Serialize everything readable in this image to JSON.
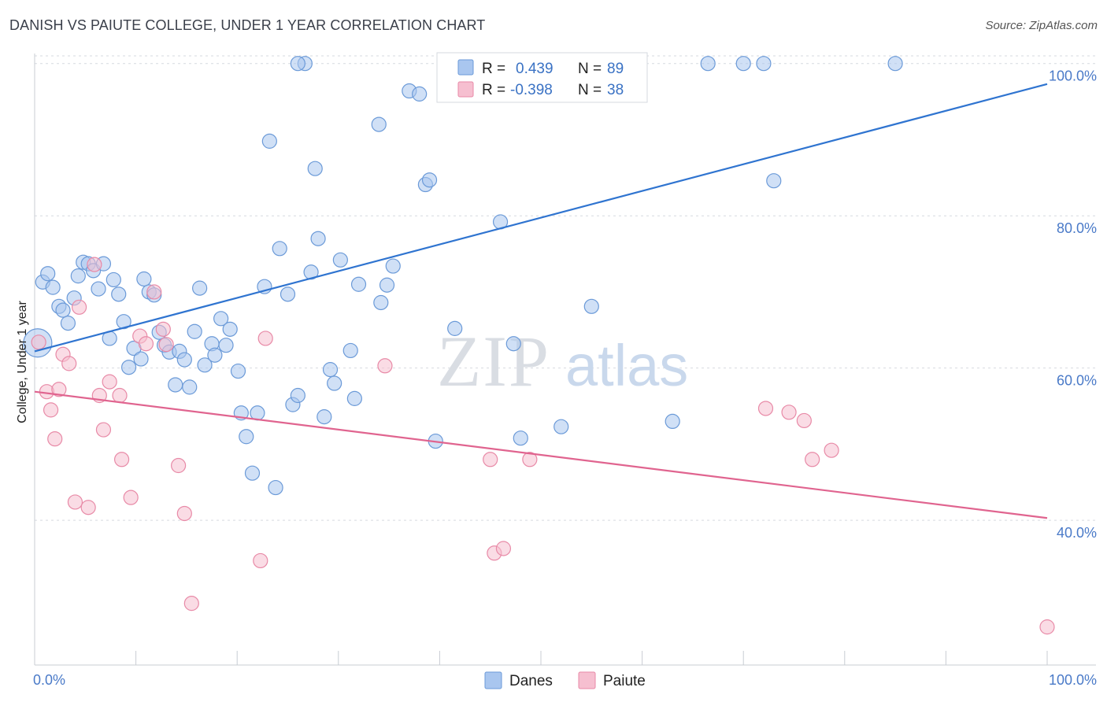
{
  "title": "DANISH VS PAIUTE COLLEGE, UNDER 1 YEAR CORRELATION CHART",
  "source": "Source: ZipAtlas.com",
  "watermark": {
    "zip": "ZIP",
    "atlas": "atlas"
  },
  "legend": {
    "rows": [
      {
        "r_label": "R =",
        "r_value": "0.439",
        "n_label": "N =",
        "n_value": "89"
      },
      {
        "r_label": "R =",
        "r_value": "-0.398",
        "n_label": "N =",
        "n_value": "38"
      }
    ]
  },
  "colors": {
    "danes_fill": "#a9c6ef",
    "danes_stroke": "#6b9ad8",
    "danes_line": "#2f74d0",
    "paiute_fill": "#f6bfd0",
    "paiute_stroke": "#e88aa7",
    "paiute_line": "#e0648f",
    "grid": "#d6d9df",
    "axis_text": "#4a7ac8"
  },
  "chart_data": {
    "type": "scatter",
    "title": "DANISH VS PAIUTE COLLEGE, UNDER 1 YEAR CORRELATION CHART",
    "xlabel": "",
    "ylabel": "College, Under 1 year",
    "xlim": [
      0,
      100
    ],
    "ylim": [
      21,
      104
    ],
    "x_tick_labels": [
      "0.0%",
      "100.0%"
    ],
    "y_ticks": [
      40,
      60,
      80,
      100
    ],
    "y_tick_labels": [
      "40.0%",
      "60.0%",
      "80.0%",
      "100.0%"
    ],
    "legend_entries": [
      "Danes",
      "Paiute"
    ],
    "series": [
      {
        "name": "Danes",
        "r": 0.439,
        "n": 89,
        "trend": {
          "x": [
            0,
            100
          ],
          "y": [
            62.2,
            97.3
          ]
        },
        "points": [
          {
            "x": 0.3,
            "y": 63.3,
            "big": true
          },
          {
            "x": 0.8,
            "y": 71.3
          },
          {
            "x": 1.3,
            "y": 72.4
          },
          {
            "x": 1.8,
            "y": 70.6
          },
          {
            "x": 2.4,
            "y": 68.1
          },
          {
            "x": 2.8,
            "y": 67.6
          },
          {
            "x": 3.3,
            "y": 65.9
          },
          {
            "x": 3.9,
            "y": 69.2
          },
          {
            "x": 4.3,
            "y": 72.1
          },
          {
            "x": 4.8,
            "y": 73.9
          },
          {
            "x": 5.3,
            "y": 73.7
          },
          {
            "x": 5.8,
            "y": 72.8
          },
          {
            "x": 6.3,
            "y": 70.4
          },
          {
            "x": 6.8,
            "y": 73.7
          },
          {
            "x": 7.4,
            "y": 63.9
          },
          {
            "x": 7.8,
            "y": 71.6
          },
          {
            "x": 8.3,
            "y": 69.7
          },
          {
            "x": 8.8,
            "y": 66.1
          },
          {
            "x": 9.3,
            "y": 60.1
          },
          {
            "x": 9.8,
            "y": 62.6
          },
          {
            "x": 10.5,
            "y": 61.2
          },
          {
            "x": 10.8,
            "y": 71.7
          },
          {
            "x": 11.3,
            "y": 70.0
          },
          {
            "x": 11.8,
            "y": 69.6
          },
          {
            "x": 12.3,
            "y": 64.7
          },
          {
            "x": 12.8,
            "y": 63.0
          },
          {
            "x": 13.3,
            "y": 62.1
          },
          {
            "x": 13.9,
            "y": 57.8
          },
          {
            "x": 14.3,
            "y": 62.2
          },
          {
            "x": 14.8,
            "y": 61.1
          },
          {
            "x": 15.3,
            "y": 57.5
          },
          {
            "x": 15.8,
            "y": 64.8
          },
          {
            "x": 16.3,
            "y": 70.5
          },
          {
            "x": 16.8,
            "y": 60.4
          },
          {
            "x": 17.5,
            "y": 63.2
          },
          {
            "x": 17.8,
            "y": 61.7
          },
          {
            "x": 18.4,
            "y": 66.5
          },
          {
            "x": 18.9,
            "y": 63.0
          },
          {
            "x": 19.3,
            "y": 65.1
          },
          {
            "x": 20.1,
            "y": 59.6
          },
          {
            "x": 20.4,
            "y": 54.1
          },
          {
            "x": 20.9,
            "y": 51.0
          },
          {
            "x": 21.5,
            "y": 46.2
          },
          {
            "x": 22.0,
            "y": 54.1
          },
          {
            "x": 22.7,
            "y": 70.7
          },
          {
            "x": 23.2,
            "y": 89.8
          },
          {
            "x": 23.8,
            "y": 44.3
          },
          {
            "x": 24.2,
            "y": 75.7
          },
          {
            "x": 25.0,
            "y": 69.7
          },
          {
            "x": 25.5,
            "y": 55.2
          },
          {
            "x": 26.0,
            "y": 56.4
          },
          {
            "x": 26.7,
            "y": 100.0
          },
          {
            "x": 27.3,
            "y": 72.6
          },
          {
            "x": 27.7,
            "y": 86.2
          },
          {
            "x": 28.0,
            "y": 77.0
          },
          {
            "x": 28.6,
            "y": 53.6
          },
          {
            "x": 29.2,
            "y": 59.8
          },
          {
            "x": 29.6,
            "y": 58.0
          },
          {
            "x": 30.2,
            "y": 74.2
          },
          {
            "x": 31.2,
            "y": 62.3
          },
          {
            "x": 31.6,
            "y": 56.0
          },
          {
            "x": 32.0,
            "y": 71.0
          },
          {
            "x": 34.0,
            "y": 92.0
          },
          {
            "x": 34.2,
            "y": 68.6
          },
          {
            "x": 34.8,
            "y": 70.9
          },
          {
            "x": 35.4,
            "y": 73.4
          },
          {
            "x": 37.0,
            "y": 96.4
          },
          {
            "x": 38.0,
            "y": 96.0
          },
          {
            "x": 38.6,
            "y": 84.1
          },
          {
            "x": 39.0,
            "y": 84.7
          },
          {
            "x": 39.6,
            "y": 50.4
          },
          {
            "x": 41.5,
            "y": 65.2
          },
          {
            "x": 43.0,
            "y": 100.0
          },
          {
            "x": 45.0,
            "y": 100.0
          },
          {
            "x": 46.0,
            "y": 79.2
          },
          {
            "x": 47.3,
            "y": 63.2
          },
          {
            "x": 48.0,
            "y": 50.8
          },
          {
            "x": 52.0,
            "y": 52.3
          },
          {
            "x": 54.0,
            "y": 100.0
          },
          {
            "x": 55.0,
            "y": 68.1
          },
          {
            "x": 58.0,
            "y": 100.0
          },
          {
            "x": 63.0,
            "y": 53.0
          },
          {
            "x": 66.5,
            "y": 100.0
          },
          {
            "x": 70.0,
            "y": 100.0
          },
          {
            "x": 72.0,
            "y": 100.0
          },
          {
            "x": 73.0,
            "y": 84.6
          },
          {
            "x": 85.0,
            "y": 100.0
          },
          {
            "x": 26.0,
            "y": 100.0
          }
        ]
      },
      {
        "name": "Paiute",
        "r": -0.398,
        "n": 38,
        "trend": {
          "x": [
            0,
            100
          ],
          "y": [
            56.9,
            40.3
          ]
        },
        "points": [
          {
            "x": 0.4,
            "y": 63.4
          },
          {
            "x": 1.2,
            "y": 56.9
          },
          {
            "x": 1.6,
            "y": 54.5
          },
          {
            "x": 2.0,
            "y": 50.7
          },
          {
            "x": 2.4,
            "y": 57.2
          },
          {
            "x": 2.8,
            "y": 61.8
          },
          {
            "x": 3.4,
            "y": 60.6
          },
          {
            "x": 4.0,
            "y": 42.4
          },
          {
            "x": 4.4,
            "y": 68.0
          },
          {
            "x": 5.3,
            "y": 41.7
          },
          {
            "x": 5.9,
            "y": 73.6
          },
          {
            "x": 6.4,
            "y": 56.4
          },
          {
            "x": 6.8,
            "y": 51.9
          },
          {
            "x": 7.4,
            "y": 58.2
          },
          {
            "x": 8.4,
            "y": 56.4
          },
          {
            "x": 8.6,
            "y": 48.0
          },
          {
            "x": 9.5,
            "y": 43.0
          },
          {
            "x": 10.4,
            "y": 64.2
          },
          {
            "x": 11.0,
            "y": 63.2
          },
          {
            "x": 11.8,
            "y": 70.0
          },
          {
            "x": 12.7,
            "y": 65.1
          },
          {
            "x": 13.0,
            "y": 63.1
          },
          {
            "x": 14.2,
            "y": 47.2
          },
          {
            "x": 14.8,
            "y": 40.9
          },
          {
            "x": 15.5,
            "y": 29.1
          },
          {
            "x": 22.3,
            "y": 34.7
          },
          {
            "x": 22.8,
            "y": 63.9
          },
          {
            "x": 34.6,
            "y": 60.3
          },
          {
            "x": 45.0,
            "y": 48.0
          },
          {
            "x": 45.4,
            "y": 35.7
          },
          {
            "x": 46.3,
            "y": 36.3
          },
          {
            "x": 48.9,
            "y": 48.0
          },
          {
            "x": 72.2,
            "y": 54.7
          },
          {
            "x": 74.5,
            "y": 54.2
          },
          {
            "x": 76.0,
            "y": 53.1
          },
          {
            "x": 76.8,
            "y": 48.0
          },
          {
            "x": 78.7,
            "y": 49.2
          },
          {
            "x": 100.0,
            "y": 26.0
          }
        ]
      }
    ]
  }
}
